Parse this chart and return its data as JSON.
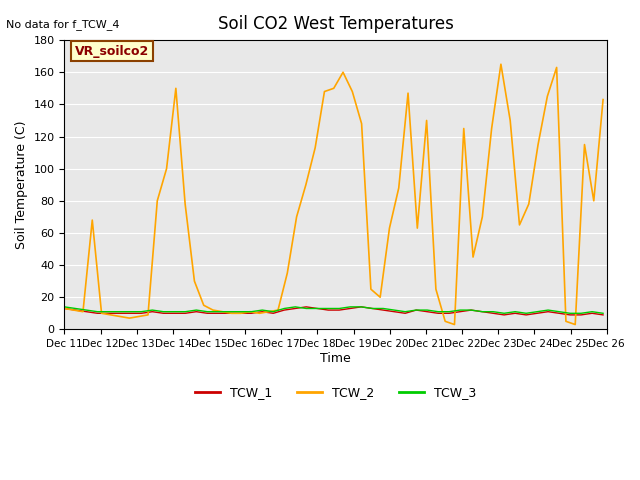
{
  "title": "Soil CO2 West Temperatures",
  "no_data_text": "No data for f_TCW_4",
  "ylabel": "Soil Temperature (C)",
  "xlabel": "Time",
  "legend_box_label": "VR_soilco2",
  "ylim": [
    0,
    180
  ],
  "xlim": [
    11,
    26
  ],
  "xtick_labels": [
    "Dec 11",
    "Dec 12",
    "Dec 13",
    "Dec 14",
    "Dec 15",
    "Dec 16",
    "Dec 17",
    "Dec 18",
    "Dec 19",
    "Dec 20",
    "Dec 21",
    "Dec 22",
    "Dec 23",
    "Dec 24",
    "Dec 25",
    "Dec 26"
  ],
  "xtick_positions": [
    11,
    12,
    13,
    14,
    15,
    16,
    17,
    18,
    19,
    20,
    21,
    22,
    23,
    24,
    25,
    26
  ],
  "ytick_positions": [
    0,
    20,
    40,
    60,
    80,
    100,
    120,
    140,
    160,
    180
  ],
  "bg_color": "#e8e8e8",
  "line_colors": {
    "TCW_1": "#cc0000",
    "TCW_2": "#ffa500",
    "TCW_3": "#00cc00"
  },
  "TCW_1": [
    13,
    12,
    11,
    10,
    10,
    10,
    10,
    10,
    11,
    10,
    10,
    10,
    11,
    10,
    10,
    10,
    10,
    10,
    11,
    10,
    12,
    13,
    14,
    13,
    12,
    12,
    13,
    14,
    13,
    12,
    11,
    10,
    12,
    11,
    10,
    10,
    11,
    12,
    11,
    10,
    9,
    10,
    9,
    10,
    11,
    10,
    9,
    9,
    10,
    9
  ],
  "TCW_2": [
    13,
    12,
    11,
    68,
    10,
    9,
    8,
    7,
    8,
    9,
    80,
    100,
    150,
    78,
    30,
    15,
    12,
    11,
    10,
    10,
    11,
    10,
    11,
    12,
    35,
    70,
    90,
    113,
    148,
    150,
    160,
    148,
    128,
    25,
    20,
    63,
    88,
    147,
    63,
    130,
    25,
    5,
    3,
    125,
    45,
    70,
    125,
    165,
    130,
    65,
    78,
    115,
    145,
    163,
    5,
    3,
    115,
    80,
    143
  ],
  "TCW_3": [
    14,
    13,
    12,
    11,
    11,
    11,
    11,
    11,
    12,
    11,
    11,
    11,
    12,
    11,
    11,
    11,
    11,
    11,
    12,
    11,
    13,
    14,
    13,
    13,
    13,
    13,
    14,
    14,
    13,
    13,
    12,
    11,
    12,
    12,
    11,
    11,
    12,
    12,
    11,
    11,
    10,
    11,
    10,
    11,
    12,
    11,
    10,
    10,
    11,
    10
  ],
  "legend_entries": [
    "TCW_1",
    "TCW_2",
    "TCW_3"
  ]
}
